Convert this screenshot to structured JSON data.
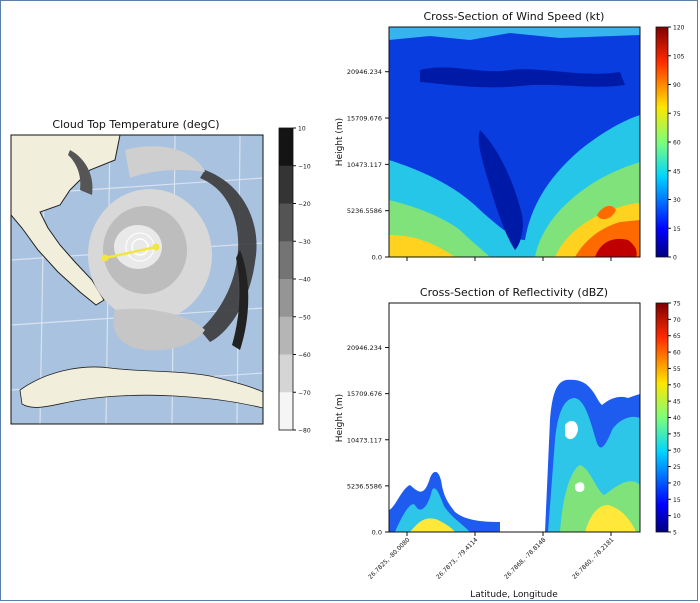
{
  "figure": {
    "map_title": "Cloud Top Temperature (degC)",
    "wind_title": "Cross-Section of Wind Speed (kt)",
    "refl_title": "Cross-Section of Reflectivity (dBZ)",
    "ylabel": "Height (m)",
    "xlabel": "Latitude, Longitude"
  },
  "chart_data": [
    {
      "type": "map",
      "title": "Cloud Top Temperature (degC)",
      "colorbar": {
        "ticks": [
          10,
          -10,
          -20,
          -30,
          -40,
          -50,
          -60,
          -70,
          -80
        ],
        "labels": [
          "10",
          "−10",
          "−20",
          "−30",
          "−40",
          "−50",
          "−60",
          "−70",
          "−80"
        ]
      },
      "colors": {
        "ocean": "#a9c2df",
        "land": "#f1efdc",
        "grid": "#d8e3f0"
      }
    },
    {
      "type": "heatmap",
      "title": "Cross-Section of Wind Speed (kt)",
      "ylabel": "Height (m)",
      "yticks": [
        "0.0",
        "5236.5586",
        "10473.117",
        "15709.676",
        "20946.234"
      ],
      "ytick_values": [
        0,
        5236.5586,
        10473.117,
        15709.676,
        20946.234
      ],
      "ylim": [
        0,
        26000
      ],
      "colorbar": {
        "ticks": [
          0,
          15,
          30,
          45,
          60,
          75,
          90,
          105,
          120
        ],
        "labels": [
          "0",
          "15",
          "30",
          "45",
          "60",
          "75",
          "90",
          "105",
          "120"
        ]
      }
    },
    {
      "type": "heatmap",
      "title": "Cross-Section of Reflectivity (dBZ)",
      "ylabel": "Height (m)",
      "xlabel": "Latitude, Longitude",
      "yticks": [
        "0.0",
        "5236.5586",
        "10473.117",
        "15709.676",
        "20946.234"
      ],
      "ytick_values": [
        0,
        5236.5586,
        10473.117,
        15709.676,
        20946.234
      ],
      "ylim": [
        0,
        26000
      ],
      "xticks": [
        "26.7825, -80.0080",
        "26.7873, -79.4114",
        "26.7868, -78.8148",
        "26.7860, -78.2181"
      ],
      "colorbar": {
        "ticks": [
          5,
          10,
          15,
          20,
          25,
          30,
          35,
          40,
          45,
          50,
          55,
          60,
          65,
          70,
          75
        ],
        "labels": [
          "5",
          "10",
          "15",
          "20",
          "25",
          "30",
          "35",
          "40",
          "45",
          "50",
          "55",
          "60",
          "65",
          "70",
          "75"
        ]
      }
    }
  ]
}
